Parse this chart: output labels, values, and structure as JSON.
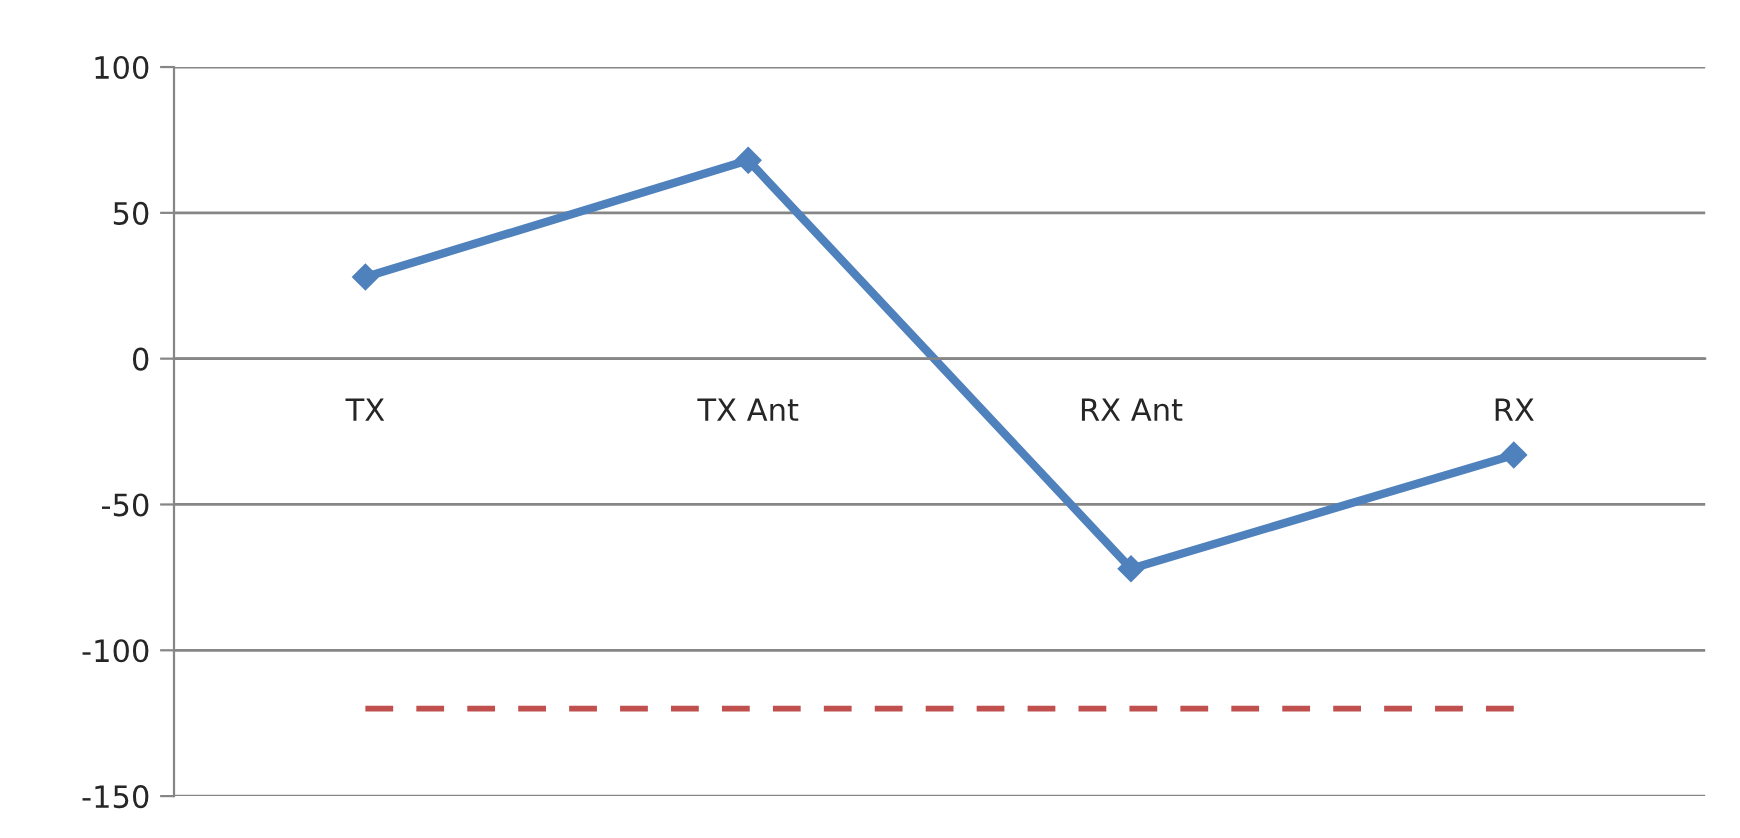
{
  "chart_data": {
    "type": "line",
    "categories": [
      "TX",
      "TX Ant",
      "RX Ant",
      "RX"
    ],
    "series": [
      {
        "color": "#4f81bd",
        "values": [
          28,
          68,
          -72,
          -33
        ],
        "marker": "diamond",
        "line_style": "solid"
      },
      {
        "color": "#c0504d",
        "values": [
          -120,
          -120,
          -120,
          -120
        ],
        "marker": "none",
        "line_style": "dashed"
      }
    ],
    "ylim": [
      -150,
      100
    ],
    "yticks": [
      -150,
      -100,
      -50,
      0,
      50,
      100
    ],
    "grid": "y",
    "legend": false
  }
}
